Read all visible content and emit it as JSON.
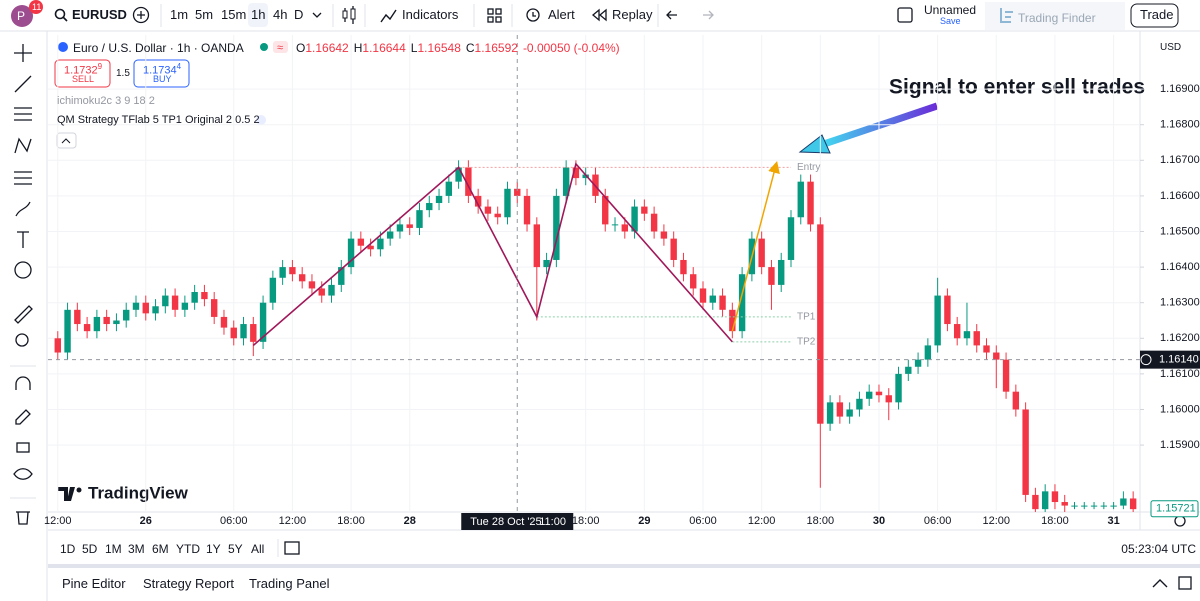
{
  "header": {
    "avatar": "P",
    "badge": "11",
    "symbol": "EURUSD",
    "intervals": [
      "1m",
      "5m",
      "15m",
      "1h",
      "4h",
      "D"
    ],
    "indicators": "Indicators",
    "alert": "Alert",
    "replay": "Replay",
    "layout_name": "Unnamed",
    "save": "Save",
    "brand": "Trading Finder",
    "trade": "Trade"
  },
  "legend": {
    "title": "Euro / U.S. Dollar · 1h · OANDA",
    "ohlc": [
      {
        "name": "O",
        "text": "1.16642"
      },
      {
        "name": "H",
        "text": "1.16644"
      },
      {
        "name": "L",
        "text": "1.16548"
      },
      {
        "name": "C",
        "text": "1.16592"
      }
    ],
    "change": "-0.00050 (-0.04%)",
    "sell": {
      "price": "1.1732",
      "pip": "9",
      "label": "SELL"
    },
    "spread": "1.5",
    "buy": {
      "price": "1.1734",
      "pip": "4",
      "label": "BUY"
    },
    "indicators": [
      "ichimoku2c 3 9 18 2",
      "QM Strategy TFlab 5 TP1 Original 2 0.5 2"
    ]
  },
  "price_axis": {
    "currency": "USD"
  },
  "watermark": "TradingView",
  "chart_data": {
    "type": "candlestick",
    "open": [
      1.162,
      1.1616,
      1.1628,
      1.1624,
      1.1622,
      1.1626,
      1.1624,
      1.1625,
      1.1628,
      1.163,
      1.1627,
      1.1629,
      1.1632,
      1.1628,
      1.163,
      1.1633,
      1.1631,
      1.1626,
      1.1623,
      1.162,
      1.1624,
      1.1619,
      1.163,
      1.1637,
      1.164,
      1.1638,
      1.1636,
      1.1634,
      1.1632,
      1.1635,
      1.164,
      1.1648,
      1.1646,
      1.1645,
      1.1648,
      1.165,
      1.1652,
      1.1651,
      1.1656,
      1.1658,
      1.166,
      1.1664,
      1.1668,
      1.166,
      1.1657,
      1.1655,
      1.1654,
      1.1662,
      1.166,
      1.1652,
      1.164,
      1.1642,
      1.166,
      1.1668,
      1.1665,
      1.1666,
      1.166,
      1.1652,
      1.1652,
      1.165,
      1.1657,
      1.1655,
      1.165,
      1.1648,
      1.1642,
      1.1638,
      1.1634,
      1.163,
      1.1632,
      1.1628,
      1.1622,
      1.1638,
      1.1648,
      1.164,
      1.1635,
      1.1642,
      1.1654,
      1.1664,
      1.1652,
      1.1596,
      1.1602,
      1.1598,
      1.16,
      1.1603,
      1.1605,
      1.1604,
      1.1602,
      1.161,
      1.1612,
      1.1614,
      1.1618,
      1.1632,
      1.1624,
      1.162,
      1.1622,
      1.1618,
      1.1616,
      1.1614,
      1.1605,
      1.16,
      1.1576,
      1.1572,
      1.1577,
      1.1574,
      1.1573,
      1.1573,
      1.1573,
      1.1573,
      1.1573,
      1.1573,
      1.1575
    ],
    "high": [
      1.1622,
      1.163,
      1.163,
      1.1626,
      1.1628,
      1.1628,
      1.1627,
      1.163,
      1.1632,
      1.1632,
      1.1631,
      1.1634,
      1.1634,
      1.1632,
      1.1635,
      1.1635,
      1.1633,
      1.1628,
      1.1625,
      1.1626,
      1.1626,
      1.1632,
      1.1639,
      1.1642,
      1.1642,
      1.164,
      1.1638,
      1.1636,
      1.1637,
      1.1642,
      1.165,
      1.165,
      1.1648,
      1.165,
      1.1652,
      1.1654,
      1.1654,
      1.1658,
      1.166,
      1.1662,
      1.1666,
      1.167,
      1.167,
      1.1662,
      1.1659,
      1.1657,
      1.1664,
      1.1664,
      1.1662,
      1.1654,
      1.1644,
      1.1662,
      1.167,
      1.167,
      1.1668,
      1.1668,
      1.1662,
      1.1654,
      1.1654,
      1.1659,
      1.1659,
      1.1657,
      1.1652,
      1.165,
      1.1644,
      1.164,
      1.1636,
      1.1634,
      1.1634,
      1.163,
      1.164,
      1.165,
      1.165,
      1.1642,
      1.1644,
      1.1656,
      1.1666,
      1.1666,
      1.1654,
      1.1604,
      1.1604,
      1.1602,
      1.1605,
      1.1607,
      1.1607,
      1.1606,
      1.1612,
      1.1614,
      1.1616,
      1.162,
      1.1637,
      1.1634,
      1.1626,
      1.163,
      1.1624,
      1.162,
      1.1618,
      1.1616,
      1.1607,
      1.1602,
      1.1578,
      1.1579,
      1.1579,
      1.1576,
      1.1574,
      1.1574,
      1.1574,
      1.1574,
      1.1574,
      1.1577,
      1.1577
    ],
    "low": [
      1.1614,
      1.1614,
      1.1622,
      1.162,
      1.162,
      1.1622,
      1.1622,
      1.1623,
      1.1626,
      1.1625,
      1.1625,
      1.1627,
      1.1626,
      1.1626,
      1.1628,
      1.1629,
      1.1624,
      1.1621,
      1.1618,
      1.1618,
      1.1615,
      1.1617,
      1.1628,
      1.1635,
      1.1636,
      1.1634,
      1.1632,
      1.163,
      1.163,
      1.1633,
      1.1638,
      1.1644,
      1.1643,
      1.1643,
      1.1646,
      1.1648,
      1.1649,
      1.1649,
      1.1654,
      1.1656,
      1.1658,
      1.1662,
      1.1658,
      1.1655,
      1.1653,
      1.1652,
      1.1652,
      1.1658,
      1.165,
      1.1625,
      1.1638,
      1.164,
      1.1658,
      1.1663,
      1.1663,
      1.1658,
      1.165,
      1.165,
      1.1648,
      1.1648,
      1.1653,
      1.1648,
      1.1646,
      1.164,
      1.1636,
      1.1632,
      1.1628,
      1.1628,
      1.1626,
      1.162,
      1.162,
      1.1636,
      1.1638,
      1.1628,
      1.1633,
      1.164,
      1.1652,
      1.165,
      1.1578,
      1.1594,
      1.1596,
      1.1596,
      1.1598,
      1.1601,
      1.1602,
      1.1597,
      1.16,
      1.1608,
      1.161,
      1.1612,
      1.1616,
      1.1622,
      1.1618,
      1.1618,
      1.1616,
      1.1614,
      1.1606,
      1.1603,
      1.1598,
      1.1574,
      1.157,
      1.157,
      1.1572,
      1.1571,
      1.1572,
      1.1572,
      1.1572,
      1.1572,
      1.1572,
      1.1572,
      1.157
    ],
    "close": [
      1.1616,
      1.1628,
      1.1624,
      1.1622,
      1.1626,
      1.1624,
      1.1625,
      1.1628,
      1.163,
      1.1627,
      1.1629,
      1.1632,
      1.1628,
      1.163,
      1.1633,
      1.1631,
      1.1626,
      1.1623,
      1.162,
      1.1624,
      1.1619,
      1.163,
      1.1637,
      1.164,
      1.1638,
      1.1636,
      1.1634,
      1.1632,
      1.1635,
      1.164,
      1.1648,
      1.1646,
      1.1645,
      1.1648,
      1.165,
      1.1652,
      1.1651,
      1.1656,
      1.1658,
      1.166,
      1.1664,
      1.1668,
      1.166,
      1.1657,
      1.1655,
      1.1654,
      1.1662,
      1.166,
      1.1652,
      1.164,
      1.1642,
      1.166,
      1.1668,
      1.1665,
      1.1666,
      1.166,
      1.1652,
      1.1652,
      1.165,
      1.1657,
      1.1655,
      1.165,
      1.1648,
      1.1642,
      1.1638,
      1.1634,
      1.163,
      1.1632,
      1.1628,
      1.1622,
      1.1638,
      1.1648,
      1.164,
      1.1635,
      1.1642,
      1.1654,
      1.1664,
      1.1652,
      1.1596,
      1.1602,
      1.1598,
      1.16,
      1.1603,
      1.1605,
      1.1604,
      1.1602,
      1.161,
      1.1612,
      1.1614,
      1.1618,
      1.1632,
      1.1624,
      1.162,
      1.1622,
      1.1618,
      1.1616,
      1.1614,
      1.1605,
      1.16,
      1.1576,
      1.1572,
      1.1577,
      1.1574,
      1.1573,
      1.1573,
      1.1573,
      1.1573,
      1.1573,
      1.1573,
      1.1575,
      1.1572
    ],
    "up_color": "#089981",
    "down_color": "#f23645",
    "xlim": [
      -1,
      110.7
    ],
    "ylim": [
      1.15712,
      1.17052
    ],
    "xticks": [
      {
        "value": 0,
        "label": "12:00"
      },
      {
        "value": 9,
        "label": "26"
      },
      {
        "value": 18,
        "label": "06:00"
      },
      {
        "value": 24,
        "label": "12:00"
      },
      {
        "value": 30,
        "label": "18:00"
      },
      {
        "value": 36,
        "label": "28"
      },
      {
        "value": 54,
        "label": "18:00"
      },
      {
        "value": 60,
        "label": "29"
      },
      {
        "value": 66,
        "label": "06:00"
      },
      {
        "value": 72,
        "label": "12:00"
      },
      {
        "value": 78,
        "label": "18:00"
      },
      {
        "value": 84,
        "label": "30"
      },
      {
        "value": 90,
        "label": "06:00"
      },
      {
        "value": 96,
        "label": "12:00"
      },
      {
        "value": 102,
        "label": "18:00"
      },
      {
        "value": 108,
        "label": "31"
      }
    ],
    "yticks": [
      {
        "value": 1.169,
        "label": "1.16900"
      },
      {
        "value": 1.168,
        "label": "1.16800"
      },
      {
        "value": 1.167,
        "label": "1.16700"
      },
      {
        "value": 1.166,
        "label": "1.16600"
      },
      {
        "value": 1.165,
        "label": "1.16500"
      },
      {
        "value": 1.164,
        "label": "1.16400"
      },
      {
        "value": 1.163,
        "label": "1.16300"
      },
      {
        "value": 1.162,
        "label": "1.16200"
      },
      {
        "value": 1.161,
        "label": "1.16100"
      },
      {
        "value": 1.16,
        "label": "1.16000"
      },
      {
        "value": 1.159,
        "label": "1.15900"
      }
    ],
    "grid": true,
    "crosshair": {
      "x": 47,
      "date": "Tue 28 Oct '25",
      "time": "11:00",
      "price": {
        "value": 1.1614,
        "label": "1.16140"
      }
    },
    "last_price": {
      "value": 1.15721,
      "label": "1.15721"
    },
    "pattern": {
      "x": [
        20,
        41,
        49,
        53,
        69
      ],
      "y": [
        1.1618,
        1.1668,
        1.1626,
        1.1669,
        1.1619
      ],
      "color": "#a0185a"
    },
    "signal": {
      "x": [
        69,
        73.5
      ],
      "y": [
        1.1622,
        1.1669
      ],
      "color": "#f0a500"
    },
    "levels": [
      {
        "name": "Entry",
        "value": 1.1668,
        "x": [
          41,
          75
        ],
        "color": "#f0a0a0"
      },
      {
        "name": "TP1",
        "value": 1.1626,
        "x": [
          49,
          75
        ],
        "color": "#8fd0ab"
      },
      {
        "name": "TP2",
        "value": 1.1619,
        "x": [
          69,
          75
        ],
        "color": "#8fd0ab"
      }
    ],
    "annotation": "Signal to enter sell trades"
  },
  "footer": {
    "ranges": [
      "1D",
      "5D",
      "1M",
      "3M",
      "6M",
      "YTD",
      "1Y",
      "5Y",
      "All"
    ],
    "clock": "05:23:04 UTC",
    "tabs": [
      "Pine Editor",
      "Strategy Report",
      "Trading Panel"
    ]
  }
}
